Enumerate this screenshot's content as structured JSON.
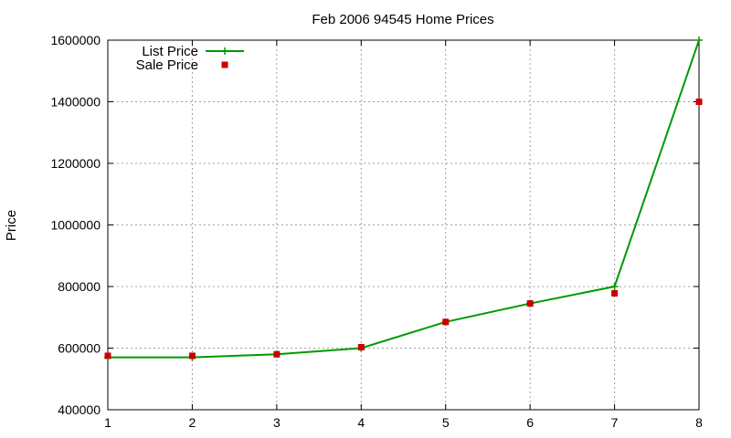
{
  "chart_data": {
    "type": "line",
    "title": "Feb 2006 94545 Home Prices",
    "xlabel": "",
    "ylabel": "Price",
    "x": [
      1,
      2,
      3,
      4,
      5,
      6,
      7,
      8
    ],
    "xlim": [
      1,
      8
    ],
    "ylim": [
      400000,
      1600000
    ],
    "xticks": [
      "1",
      "2",
      "3",
      "4",
      "5",
      "6",
      "7",
      "8"
    ],
    "yticks": [
      "400000",
      "600000",
      "800000",
      "1000000",
      "1200000",
      "1400000",
      "1600000"
    ],
    "grid": true,
    "legend_position": "top-left",
    "series": [
      {
        "name": "List Price",
        "style": "line-with-plus",
        "color": "#009900",
        "values": [
          570000,
          570000,
          580000,
          600000,
          685000,
          745000,
          800000,
          1600000
        ]
      },
      {
        "name": "Sale Price",
        "style": "square-markers",
        "color": "#cc0000",
        "values": [
          575000,
          575000,
          580000,
          603000,
          685000,
          745000,
          778000,
          1400000
        ]
      }
    ]
  }
}
